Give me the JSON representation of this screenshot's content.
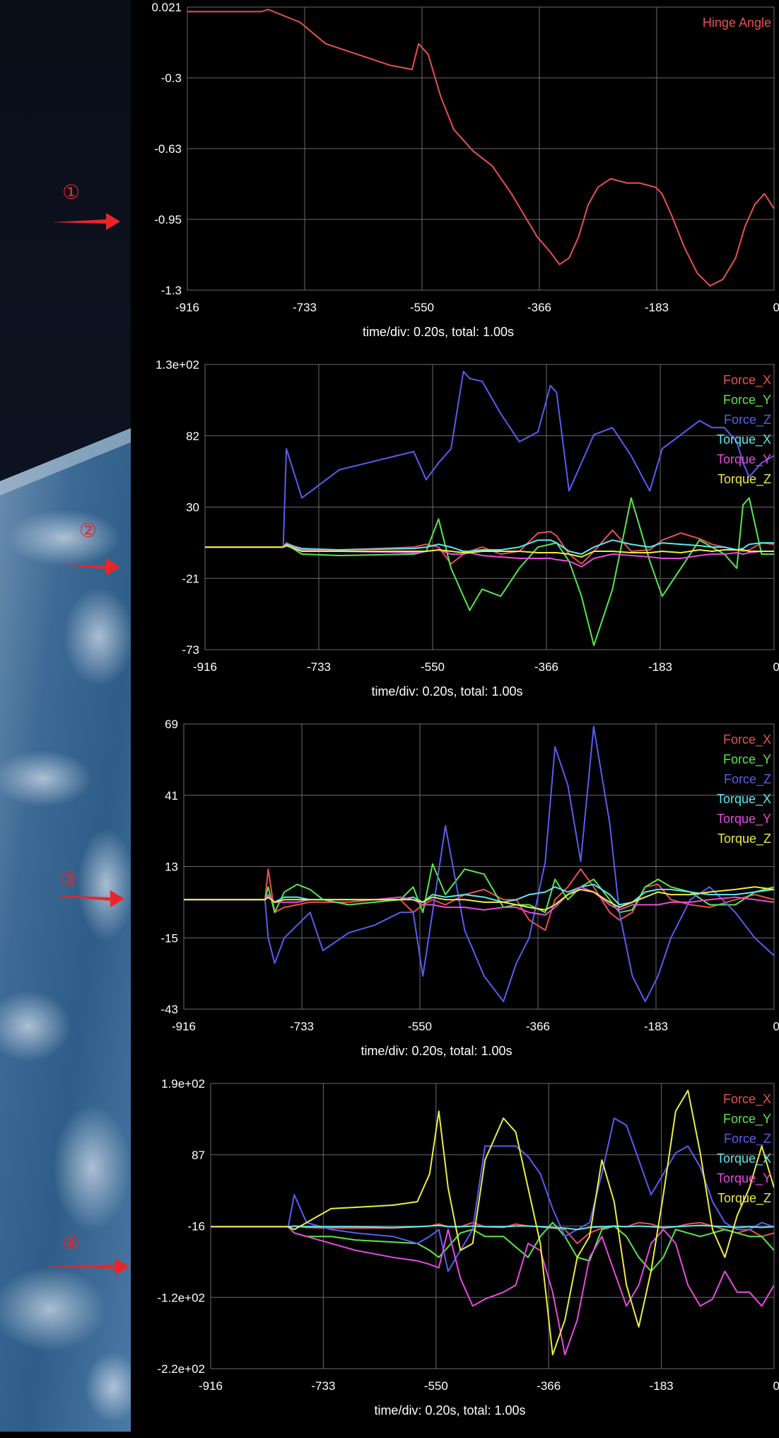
{
  "colors": {
    "force_x": "#e85050",
    "force_y": "#55e84a",
    "force_z": "#5a5cf0",
    "torque_x": "#5ee8ee",
    "torque_y": "#e84ae0",
    "torque_z": "#ecec46",
    "hinge": "#e85050",
    "grid": "#6a6a6a",
    "text": "#ffffff",
    "marker": "#e8262a"
  },
  "markers": [
    "①",
    "②",
    "③",
    "④"
  ],
  "plots": [
    {
      "id": "hinge",
      "legend": [
        "Hinge Angle"
      ],
      "yticks": [
        "0.021",
        "-0.3",
        "-0.63",
        "-0.95",
        "-1.3"
      ],
      "xticks": [
        "-916",
        "-733",
        "-550",
        "-366",
        "-183",
        "0"
      ],
      "footer": "time/div: 0.20s, total: 1.00s"
    },
    {
      "id": "ft2",
      "legend": [
        "Force_X",
        "Force_Y",
        "Force_Z",
        "Torque_X",
        "Torque_Y",
        "Torque_Z"
      ],
      "yticks": [
        "1.3e+02",
        "82",
        "30",
        "-21",
        "-73"
      ],
      "xticks": [
        "-916",
        "-733",
        "-550",
        "-366",
        "-183",
        "0"
      ],
      "footer": "time/div: 0.20s, total: 1.00s"
    },
    {
      "id": "ft3",
      "legend": [
        "Force_X",
        "Force_Y",
        "Force_Z",
        "Torque_X",
        "Torque_Y",
        "Torque_Z"
      ],
      "yticks": [
        "69",
        "41",
        "13",
        "-15",
        "-43"
      ],
      "xticks": [
        "-916",
        "-733",
        "-550",
        "-366",
        "-183",
        "0"
      ],
      "footer": "time/div: 0.20s, total: 1.00s"
    },
    {
      "id": "ft4",
      "legend": [
        "Force_X",
        "Force_Y",
        "Force_Z",
        "Torque_X",
        "Torque_Y",
        "Torque_Z"
      ],
      "yticks": [
        "1.9e+02",
        "87",
        "-16",
        "-1.2e+02",
        "-2.2e+02"
      ],
      "xticks": [
        "-916",
        "-733",
        "-550",
        "-366",
        "-183",
        "0"
      ],
      "footer": "time/div: 0.20s, total: 1.00s"
    }
  ],
  "chart_data": [
    {
      "type": "line",
      "xlim": [
        -916,
        0
      ],
      "ylim": [
        -1.3,
        0.021
      ],
      "series": [
        {
          "name": "Hinge Angle",
          "x": [
            -916,
            -800,
            -790,
            -740,
            -700,
            -650,
            -600,
            -565,
            -555,
            -540,
            -520,
            -500,
            -470,
            -440,
            -410,
            -390,
            -370,
            -350,
            -335,
            -320,
            -305,
            -290,
            -275,
            -255,
            -230,
            -210,
            -185,
            -175,
            -160,
            -140,
            -120,
            -100,
            -80,
            -60,
            -45,
            -30,
            -15,
            0
          ],
          "values": [
            0.0,
            0.0,
            0.01,
            -0.05,
            -0.15,
            -0.2,
            -0.25,
            -0.27,
            -0.15,
            -0.2,
            -0.4,
            -0.55,
            -0.65,
            -0.72,
            -0.85,
            -0.95,
            -1.05,
            -1.12,
            -1.18,
            -1.15,
            -1.05,
            -0.9,
            -0.82,
            -0.78,
            -0.8,
            -0.8,
            -0.82,
            -0.85,
            -0.95,
            -1.1,
            -1.22,
            -1.28,
            -1.25,
            -1.15,
            -1.0,
            -0.9,
            -0.85,
            -0.92
          ]
        }
      ]
    },
    {
      "type": "line",
      "xlim": [
        -916,
        0
      ],
      "ylim": [
        -73,
        130
      ],
      "x": [
        -916,
        -790,
        -785,
        -760,
        -700,
        -580,
        -560,
        -540,
        -520,
        -500,
        -490,
        -470,
        -440,
        -410,
        -380,
        -360,
        -350,
        -330,
        -310,
        -290,
        -260,
        -230,
        -200,
        -180,
        -150,
        -120,
        -100,
        -80,
        -60,
        -50,
        -40,
        -20,
        0
      ],
      "series": [
        {
          "name": "Force_X",
          "values": [
            0,
            0,
            3,
            -2,
            -2,
            0,
            2,
            0,
            -12,
            -5,
            -3,
            0,
            -5,
            -3,
            10,
            11,
            8,
            -5,
            -12,
            -3,
            12,
            -3,
            -2,
            5,
            10,
            6,
            2,
            0,
            -2,
            -3,
            -2,
            3,
            2
          ]
        },
        {
          "name": "Force_Y",
          "values": [
            0,
            0,
            2,
            -5,
            -6,
            -5,
            -3,
            20,
            -15,
            -35,
            -45,
            -30,
            -35,
            -15,
            0,
            2,
            3,
            -10,
            -35,
            -70,
            -30,
            35,
            -10,
            -35,
            -15,
            5,
            0,
            -5,
            -15,
            30,
            35,
            -5,
            -5
          ]
        },
        {
          "name": "Force_Z",
          "values": [
            0,
            0,
            70,
            35,
            55,
            68,
            48,
            60,
            70,
            125,
            120,
            118,
            95,
            75,
            82,
            115,
            110,
            40,
            60,
            80,
            85,
            65,
            40,
            70,
            80,
            90,
            85,
            85,
            75,
            60,
            50,
            60,
            65
          ]
        },
        {
          "name": "Torque_X",
          "values": [
            0,
            0,
            2,
            -1,
            -2,
            -1,
            0,
            2,
            0,
            -3,
            -3,
            -2,
            -2,
            0,
            5,
            5,
            3,
            -3,
            -5,
            0,
            5,
            2,
            0,
            3,
            2,
            1,
            0,
            0,
            -2,
            -1,
            2,
            3,
            3
          ]
        },
        {
          "name": "Torque_Y",
          "values": [
            0,
            0,
            1,
            -2,
            -3,
            -4,
            -3,
            -2,
            -5,
            -5,
            -4,
            -6,
            -7,
            -8,
            -8,
            -8,
            -9,
            -10,
            -14,
            -8,
            -5,
            -6,
            -7,
            -8,
            -8,
            -6,
            -5,
            -5,
            -4,
            -5,
            -4,
            -3,
            -3
          ]
        },
        {
          "name": "Torque_Z",
          "values": [
            0,
            0,
            1,
            -3,
            -3,
            -3,
            -3,
            -2,
            -3,
            -4,
            -4,
            -3,
            -3,
            -3,
            -4,
            -4,
            -4,
            -5,
            -7,
            -3,
            -3,
            -4,
            -4,
            -3,
            -4,
            -2,
            -3,
            -2,
            -2,
            -2,
            -3,
            -3,
            -3
          ]
        }
      ]
    },
    {
      "type": "line",
      "xlim": [
        -916,
        0
      ],
      "ylim": [
        -43,
        69
      ],
      "x": [
        -916,
        -790,
        -785,
        -775,
        -760,
        -740,
        -720,
        -700,
        -660,
        -620,
        -580,
        -560,
        -545,
        -530,
        -510,
        -480,
        -450,
        -420,
        -400,
        -380,
        -355,
        -340,
        -320,
        -300,
        -280,
        -255,
        -240,
        -220,
        -200,
        -180,
        -160,
        -130,
        -100,
        -60,
        -30,
        0
      ],
      "series": [
        {
          "name": "Force_X",
          "values": [
            0,
            0,
            12,
            -5,
            -3,
            -2,
            -1,
            -1,
            -1,
            0,
            0,
            -5,
            -2,
            0,
            -2,
            2,
            4,
            0,
            0,
            -8,
            -12,
            0,
            5,
            12,
            5,
            -5,
            -8,
            -5,
            5,
            6,
            0,
            -2,
            -3,
            0,
            2,
            0
          ]
        },
        {
          "name": "Force_Y",
          "values": [
            0,
            0,
            5,
            -5,
            3,
            6,
            4,
            0,
            -2,
            -1,
            0,
            5,
            -5,
            14,
            2,
            12,
            10,
            -3,
            -2,
            -2,
            -5,
            8,
            0,
            5,
            8,
            0,
            -5,
            -4,
            5,
            8,
            5,
            3,
            -2,
            -2,
            3,
            5
          ]
        },
        {
          "name": "Force_Z",
          "values": [
            0,
            0,
            -15,
            -25,
            -15,
            -10,
            -5,
            -20,
            -13,
            -10,
            -5,
            -5,
            -30,
            -5,
            29,
            -12,
            -30,
            -40,
            -25,
            -15,
            15,
            60,
            45,
            15,
            68,
            30,
            -5,
            -30,
            -40,
            -30,
            -15,
            0,
            5,
            -5,
            -15,
            -22
          ]
        },
        {
          "name": "Torque_X",
          "values": [
            0,
            0,
            1,
            -1,
            1,
            1,
            0,
            0,
            0,
            0,
            0,
            1,
            -1,
            2,
            1,
            2,
            1,
            -1,
            0,
            2,
            3,
            5,
            3,
            5,
            6,
            2,
            -2,
            -1,
            3,
            4,
            4,
            3,
            2,
            2,
            3,
            4
          ]
        },
        {
          "name": "Torque_Y",
          "values": [
            0,
            0,
            2,
            -1,
            -1,
            -1,
            0,
            0,
            0,
            0,
            1,
            0,
            -2,
            -2,
            -3,
            -3,
            -4,
            -3,
            -3,
            -5,
            -6,
            -3,
            2,
            5,
            3,
            -2,
            -4,
            -2,
            -2,
            -2,
            -1,
            -1,
            0,
            1,
            0,
            -1
          ]
        },
        {
          "name": "Torque_Z",
          "values": [
            0,
            0,
            1,
            -1,
            0,
            0,
            0,
            0,
            0,
            0,
            0,
            0,
            -1,
            1,
            0,
            0,
            -1,
            -1,
            -2,
            -3,
            -4,
            -2,
            2,
            4,
            3,
            -1,
            -3,
            -1,
            1,
            3,
            2,
            2,
            3,
            4,
            5,
            4
          ]
        }
      ]
    },
    {
      "type": "line",
      "xlim": [
        -916,
        0
      ],
      "ylim": [
        -220,
        190
      ],
      "x": [
        -916,
        -790,
        -780,
        -760,
        -720,
        -680,
        -620,
        -580,
        -560,
        -545,
        -530,
        -510,
        -490,
        -470,
        -440,
        -420,
        -400,
        -380,
        -360,
        -340,
        -320,
        -300,
        -280,
        -260,
        -240,
        -220,
        -200,
        -180,
        -160,
        -140,
        -120,
        -100,
        -80,
        -60,
        -40,
        -20,
        0
      ],
      "series": [
        {
          "name": "Force_X",
          "values": [
            -16,
            -16,
            -15,
            -17,
            -18,
            -18,
            -18,
            -16,
            -15,
            -12,
            -16,
            -16,
            -10,
            -16,
            -17,
            -12,
            -15,
            -16,
            -18,
            -20,
            -40,
            -25,
            -18,
            -15,
            -16,
            -10,
            -12,
            -18,
            -16,
            -12,
            -10,
            -15,
            -20,
            -25,
            -20,
            -30,
            -25
          ]
        },
        {
          "name": "Force_Y",
          "values": [
            -16,
            -16,
            -25,
            -30,
            -30,
            -35,
            -38,
            -40,
            -50,
            -60,
            -45,
            -25,
            -20,
            -30,
            -30,
            -45,
            -60,
            -30,
            -10,
            -30,
            -60,
            -65,
            -20,
            -15,
            -30,
            -60,
            -80,
            -60,
            -20,
            -25,
            -30,
            -25,
            -20,
            -25,
            -30,
            -30,
            -50
          ]
        },
        {
          "name": "Force_Z",
          "values": [
            -16,
            -16,
            30,
            -10,
            -20,
            -25,
            -30,
            -40,
            -30,
            -20,
            -80,
            -50,
            -20,
            100,
            100,
            100,
            85,
            60,
            10,
            -30,
            -20,
            -10,
            60,
            140,
            130,
            80,
            30,
            60,
            90,
            100,
            70,
            20,
            -10,
            -20,
            -20,
            -10,
            -16
          ]
        },
        {
          "name": "Torque_X",
          "values": [
            -16,
            -16,
            -15,
            -16,
            -16,
            -16,
            -17,
            -16,
            -15,
            -14,
            -16,
            -16,
            -15,
            -16,
            -16,
            -15,
            -15,
            -16,
            -17,
            -18,
            -20,
            -17,
            -16,
            -15,
            -16,
            -15,
            -16,
            -17,
            -16,
            -15,
            -14,
            -15,
            -16,
            -17,
            -16,
            -17,
            -16
          ]
        },
        {
          "name": "Torque_Y",
          "values": [
            -16,
            -16,
            -25,
            -30,
            -40,
            -50,
            -60,
            -65,
            -70,
            -75,
            -20,
            -90,
            -130,
            -120,
            -110,
            -100,
            -40,
            -50,
            -110,
            -200,
            -150,
            -60,
            -30,
            -80,
            -130,
            -100,
            -40,
            -20,
            -40,
            -100,
            -130,
            -120,
            -80,
            -110,
            -110,
            -130,
            -100
          ]
        },
        {
          "name": "Torque_Z",
          "values": [
            -16,
            -16,
            -20,
            -10,
            10,
            12,
            15,
            20,
            60,
            150,
            40,
            -50,
            -40,
            80,
            140,
            120,
            40,
            -40,
            -200,
            -150,
            -60,
            -30,
            80,
            20,
            -100,
            -160,
            -80,
            30,
            150,
            180,
            90,
            -20,
            -60,
            0,
            40,
            100,
            40
          ]
        }
      ]
    }
  ]
}
